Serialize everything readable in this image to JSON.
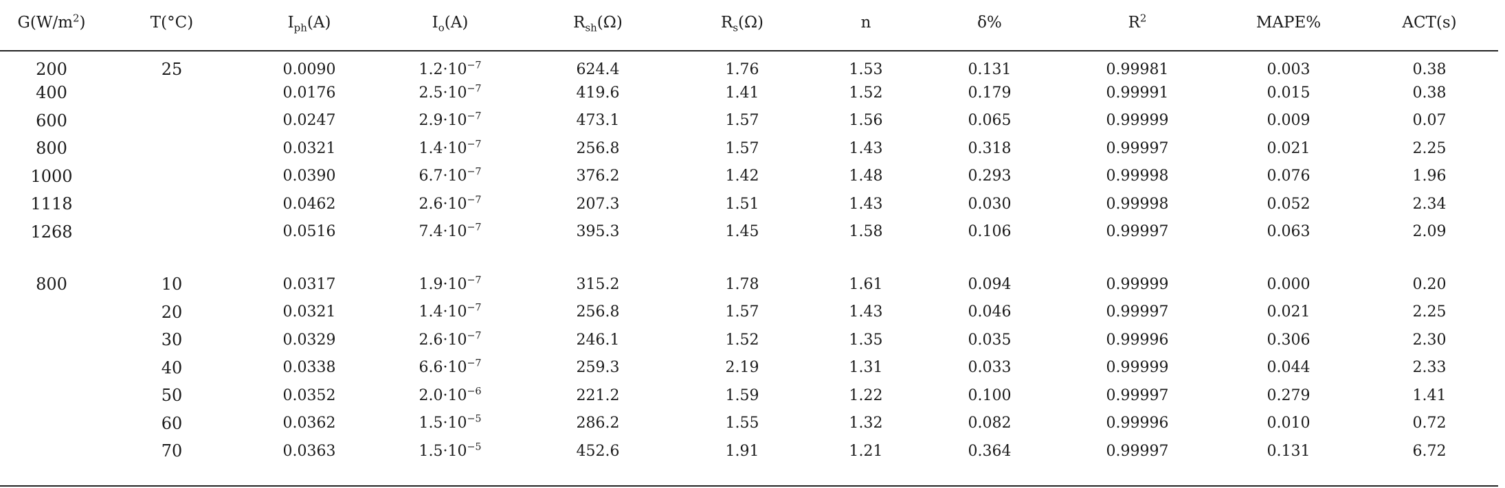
{
  "headers": [
    {
      "base": "G(W/m",
      "sup": "2",
      "after": ")"
    },
    {
      "base": "T(°C)",
      "sub": "",
      "after": ""
    },
    {
      "base": "I",
      "sub": "ph",
      "after": "(A)"
    },
    {
      "base": "I",
      "sub": "o",
      "after": "(A)"
    },
    {
      "base": "R",
      "sub": "sh",
      "after": "(Ω)"
    },
    {
      "base": "R",
      "sub": "s",
      "after": "(Ω)"
    },
    {
      "base": "n",
      "sub": "",
      "after": ""
    },
    {
      "base": "δ%",
      "sub": "",
      "after": ""
    },
    {
      "base": "R",
      "sup": "2",
      "after": ""
    },
    {
      "base": "MAPE%",
      "sub": "",
      "after": ""
    },
    {
      "base": "ACT(s)",
      "sub": "",
      "after": ""
    }
  ],
  "group1": {
    "temperature": "25",
    "rows": [
      {
        "g": "200",
        "iph": "0.0090",
        "io_m": "1.2·10",
        "io_e": "−7",
        "rsh": "624.4",
        "rs": "1.76",
        "n": "1.53",
        "delta": "0.131",
        "r2": "0.99981",
        "mape": "0.003",
        "act": "0.38"
      },
      {
        "g": "400",
        "iph": "0.0176",
        "io_m": "2.5·10",
        "io_e": "−7",
        "rsh": "419.6",
        "rs": "1.41",
        "n": "1.52",
        "delta": "0.179",
        "r2": "0.99991",
        "mape": "0.015",
        "act": "0.38"
      },
      {
        "g": "600",
        "iph": "0.0247",
        "io_m": "2.9·10",
        "io_e": "−7",
        "rsh": "473.1",
        "rs": "1.57",
        "n": "1.56",
        "delta": "0.065",
        "r2": "0.99999",
        "mape": "0.009",
        "act": "0.07"
      },
      {
        "g": "800",
        "iph": "0.0321",
        "io_m": "1.4·10",
        "io_e": "−7",
        "rsh": "256.8",
        "rs": "1.57",
        "n": "1.43",
        "delta": "0.318",
        "r2": "0.99997",
        "mape": "0.021",
        "act": "2.25"
      },
      {
        "g": "1000",
        "iph": "0.0390",
        "io_m": "6.7·10",
        "io_e": "−7",
        "rsh": "376.2",
        "rs": "1.42",
        "n": "1.48",
        "delta": "0.293",
        "r2": "0.99998",
        "mape": "0.076",
        "act": "1.96"
      },
      {
        "g": "1118",
        "iph": "0.0462",
        "io_m": "2.6·10",
        "io_e": "−7",
        "rsh": "207.3",
        "rs": "1.51",
        "n": "1.43",
        "delta": "0.030",
        "r2": "0.99998",
        "mape": "0.052",
        "act": "2.34"
      },
      {
        "g": "1268",
        "iph": "0.0516",
        "io_m": "7.4·10",
        "io_e": "−7",
        "rsh": "395.3",
        "rs": "1.45",
        "n": "1.58",
        "delta": "0.106",
        "r2": "0.99997",
        "mape": "0.063",
        "act": "2.09"
      }
    ]
  },
  "group2": {
    "irradiance": "800",
    "rows": [
      {
        "t": "10",
        "iph": "0.0317",
        "io_m": "1.9·10",
        "io_e": "−7",
        "rsh": "315.2",
        "rs": "1.78",
        "n": "1.61",
        "delta": "0.094",
        "r2": "0.99999",
        "mape": "0.000",
        "act": "0.20"
      },
      {
        "t": "20",
        "iph": "0.0321",
        "io_m": "1.4·10",
        "io_e": "−7",
        "rsh": "256.8",
        "rs": "1.57",
        "n": "1.43",
        "delta": "0.046",
        "r2": "0.99997",
        "mape": "0.021",
        "act": "2.25"
      },
      {
        "t": "30",
        "iph": "0.0329",
        "io_m": "2.6·10",
        "io_e": "−7",
        "rsh": "246.1",
        "rs": "1.52",
        "n": "1.35",
        "delta": "0.035",
        "r2": "0.99996",
        "mape": "0.306",
        "act": "2.30"
      },
      {
        "t": "40",
        "iph": "0.0338",
        "io_m": "6.6·10",
        "io_e": "−7",
        "rsh": "259.3",
        "rs": "2.19",
        "n": "1.31",
        "delta": "0.033",
        "r2": "0.99999",
        "mape": "0.044",
        "act": "2.33"
      },
      {
        "t": "50",
        "iph": "0.0352",
        "io_m": "2.0·10",
        "io_e": "−6",
        "rsh": "221.2",
        "rs": "1.59",
        "n": "1.22",
        "delta": "0.100",
        "r2": "0.99997",
        "mape": "0.279",
        "act": "1.41"
      },
      {
        "t": "60",
        "iph": "0.0362",
        "io_m": "1.5·10",
        "io_e": "−5",
        "rsh": "286.2",
        "rs": "1.55",
        "n": "1.32",
        "delta": "0.082",
        "r2": "0.99996",
        "mape": "0.010",
        "act": "0.72"
      },
      {
        "t": "70",
        "iph": "0.0363",
        "io_m": "1.5·10",
        "io_e": "−5",
        "rsh": "452.6",
        "rs": "1.91",
        "n": "1.21",
        "delta": "0.364",
        "r2": "0.99997",
        "mape": "0.131",
        "act": "6.72"
      }
    ]
  }
}
